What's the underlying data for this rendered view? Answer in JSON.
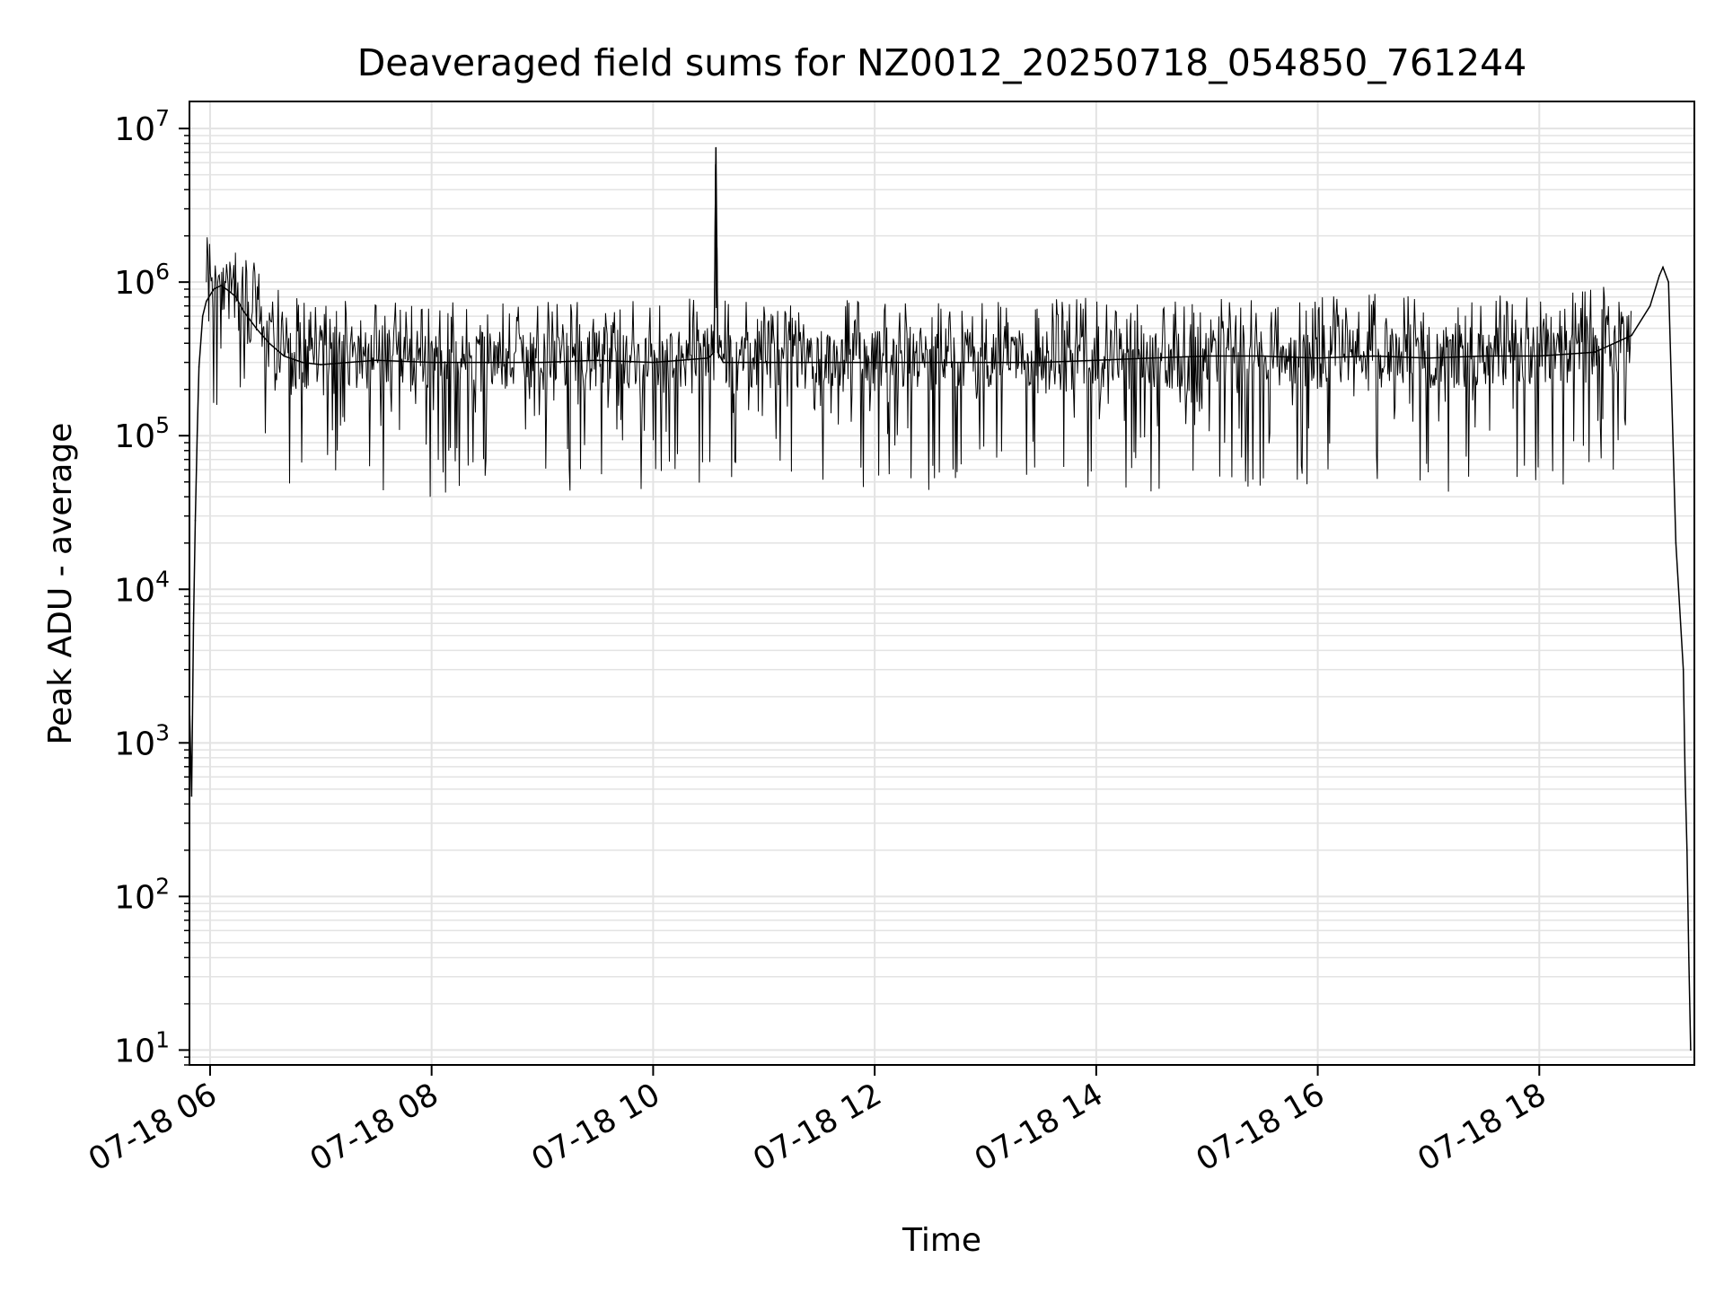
{
  "chart_data": {
    "type": "line",
    "title": "Deaveraged field sums for NZ0012_20250718_054850_761244",
    "xlabel": "Time",
    "ylabel": "Peak ADU - average",
    "yscale": "log",
    "ylim": [
      8,
      15000000
    ],
    "xlim": [
      "2025-07-18T05:48:50",
      "2025-07-18T19:24:00"
    ],
    "x_ticks": [
      {
        "x": "2025-07-18T06:00:00",
        "label": "07-18 06"
      },
      {
        "x": "2025-07-18T08:00:00",
        "label": "07-18 08"
      },
      {
        "x": "2025-07-18T10:00:00",
        "label": "07-18 10"
      },
      {
        "x": "2025-07-18T12:00:00",
        "label": "07-18 12"
      },
      {
        "x": "2025-07-18T14:00:00",
        "label": "07-18 14"
      },
      {
        "x": "2025-07-18T16:00:00",
        "label": "07-18 16"
      },
      {
        "x": "2025-07-18T18:00:00",
        "label": "07-18 18"
      }
    ],
    "y_ticks": [
      {
        "value": 10,
        "base": "10",
        "exp": "1"
      },
      {
        "value": 100,
        "base": "10",
        "exp": "2"
      },
      {
        "value": 1000,
        "base": "10",
        "exp": "3"
      },
      {
        "value": 10000,
        "base": "10",
        "exp": "4"
      },
      {
        "value": 100000,
        "base": "10",
        "exp": "5"
      },
      {
        "value": 1000000,
        "base": "10",
        "exp": "6"
      },
      {
        "value": 10000000,
        "base": "10",
        "exp": "7"
      }
    ],
    "grid": true,
    "line_color": "#000000",
    "grid_color": "#e3e3e3",
    "series": [
      {
        "x": [
          "2025-07-18T05:49:00",
          "2025-07-18T05:50:00",
          "2025-07-18T05:51:00",
          "2025-07-18T05:52:00",
          "2025-07-18T05:53:00",
          "2025-07-18T05:54:00",
          "2025-07-18T05:56:00",
          "2025-07-18T05:58:00",
          "2025-07-18T06:02:00",
          "2025-07-18T06:06:00",
          "2025-07-18T06:10:00",
          "2025-07-18T06:14:00",
          "2025-07-18T06:18:00",
          "2025-07-18T06:25:00",
          "2025-07-18T06:32:00",
          "2025-07-18T06:40:00",
          "2025-07-18T06:50:00",
          "2025-07-18T07:00:00",
          "2025-07-18T07:15:00",
          "2025-07-18T07:30:00",
          "2025-07-18T08:00:00",
          "2025-07-18T08:30:00",
          "2025-07-18T09:00:00",
          "2025-07-18T09:30:00",
          "2025-07-18T10:00:00",
          "2025-07-18T10:30:00",
          "2025-07-18T10:33:00",
          "2025-07-18T10:34:00",
          "2025-07-18T10:35:00",
          "2025-07-18T10:38:00",
          "2025-07-18T11:00:00",
          "2025-07-18T11:30:00",
          "2025-07-18T12:00:00",
          "2025-07-18T12:30:00",
          "2025-07-18T13:00:00",
          "2025-07-18T13:30:00",
          "2025-07-18T14:00:00",
          "2025-07-18T14:30:00",
          "2025-07-18T15:00:00",
          "2025-07-18T15:30:00",
          "2025-07-18T16:00:00",
          "2025-07-18T16:30:00",
          "2025-07-18T17:00:00",
          "2025-07-18T17:30:00",
          "2025-07-18T18:00:00",
          "2025-07-18T18:30:00",
          "2025-07-18T18:50:00",
          "2025-07-18T19:00:00",
          "2025-07-18T19:05:00",
          "2025-07-18T19:07:00",
          "2025-07-18T19:10:00",
          "2025-07-18T19:14:00",
          "2025-07-18T19:18:00",
          "2025-07-18T19:19:00",
          "2025-07-18T19:20:00",
          "2025-07-18T19:21:00",
          "2025-07-18T19:22:00"
        ],
        "values": [
          1500,
          450,
          6000,
          28000,
          100000,
          280000,
          600000,
          750000,
          900000,
          950000,
          880000,
          800000,
          650000,
          500000,
          400000,
          330000,
          300000,
          290000,
          300000,
          310000,
          300000,
          300000,
          300000,
          310000,
          300000,
          320000,
          350000,
          7500000,
          350000,
          300000,
          300000,
          300000,
          300000,
          300000,
          300000,
          300000,
          310000,
          320000,
          330000,
          330000,
          320000,
          330000,
          320000,
          330000,
          330000,
          350000,
          450000,
          700000,
          1100000,
          1250000,
          1000000,
          20000,
          3000,
          600,
          200,
          40,
          10
        ]
      }
    ]
  }
}
